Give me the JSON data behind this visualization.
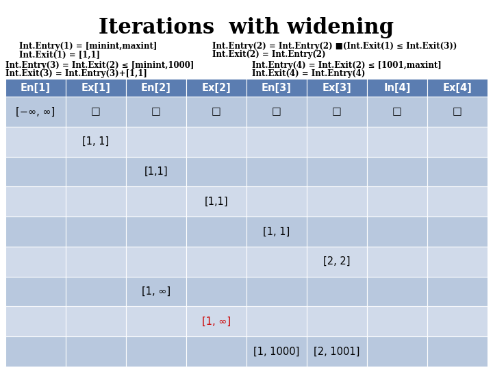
{
  "title": "Iterations  with widening",
  "subtitle_left_line1": "Int.Entry(1) = [minint,maxint]",
  "subtitle_left_line2": "Int.Exit(1) = [1,1]",
  "subtitle_right_line1": "Int.Entry(2) = Int.Entry(2) ■(Int.Exit(1) ≤ Int.Exit(3))",
  "subtitle_right_line2": "Int.Exit(2) = Int.Entry(2)",
  "subtitle_line3a": "Int.Entry(3) = Int.Exit(2) ≤ [minint,1000]",
  "subtitle_line3b": "Int.Entry(4) = Int.Exit(2) ≤ [1001,maxint]",
  "subtitle_line4a": "Int.Exit(3) = Int.Entry(3)+[1,1]",
  "subtitle_line4b": "Int.Exit(4) = Int.Entry(4)",
  "col_headers": [
    "En[1]",
    "Ex[1]",
    "En[2]",
    "Ex[2]",
    "En[3]",
    "Ex[3]",
    "In[4]",
    "Ex[4]"
  ],
  "header_bg": "#5b7db1",
  "header_fg": "#ffffff",
  "row_bg_dark": "#b8c8de",
  "row_bg_light": "#d0daea",
  "cell_data": [
    [
      "[−∞, ∞]",
      "□",
      "□",
      "□",
      "□",
      "□",
      "□",
      "□"
    ],
    [
      "",
      "[1, 1]",
      "",
      "",
      "",
      "",
      "",
      ""
    ],
    [
      "",
      "",
      "[1,1]",
      "",
      "",
      "",
      "",
      ""
    ],
    [
      "",
      "",
      "",
      "[1,1]",
      "",
      "",
      "",
      ""
    ],
    [
      "",
      "",
      "",
      "",
      "[1, 1]",
      "",
      "",
      ""
    ],
    [
      "",
      "",
      "",
      "",
      "",
      "[2, 2]",
      "",
      ""
    ],
    [
      "",
      "",
      "[1, ∞]",
      "",
      "",
      "",
      "",
      ""
    ],
    [
      "",
      "",
      "",
      "[1, ∞]",
      "",
      "",
      "",
      ""
    ],
    [
      "",
      "",
      "",
      "",
      "[1, 1000]",
      "[2, 1001]",
      "",
      ""
    ]
  ],
  "cell_colors_override": {
    "7_3": "#cc0000"
  },
  "background_color": "#ffffff",
  "title_fontsize": 22,
  "subtitle_fontsize": 8.5,
  "table_fontsize": 10.5,
  "table_header_fontsize": 10.5
}
